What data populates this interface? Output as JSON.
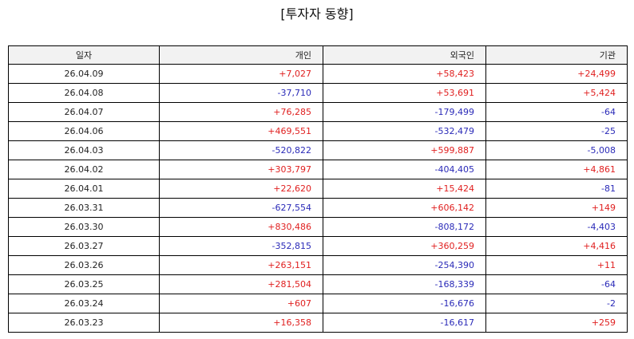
{
  "title": "[투자자 동향]",
  "colors": {
    "positive": "#e02020",
    "negative": "#2a2ab8",
    "header_bg": "#f2f2f2"
  },
  "table": {
    "headers": [
      "일자",
      "개인",
      "외국인",
      "기관"
    ],
    "rows": [
      [
        "26.04.09",
        "+7,027",
        "+58,423",
        "+24,499"
      ],
      [
        "26.04.08",
        "-37,710",
        "+53,691",
        "+5,424"
      ],
      [
        "26.04.07",
        "+76,285",
        "-179,499",
        "-64"
      ],
      [
        "26.04.06",
        "+469,551",
        "-532,479",
        "-25"
      ],
      [
        "26.04.03",
        "-520,822",
        "+599,887",
        "-5,008"
      ],
      [
        "26.04.02",
        "+303,797",
        "-404,405",
        "+4,861"
      ],
      [
        "26.04.01",
        "+22,620",
        "+15,424",
        "-81"
      ],
      [
        "26.03.31",
        "-627,554",
        "+606,142",
        "+149"
      ],
      [
        "26.03.30",
        "+830,486",
        "-808,172",
        "-4,403"
      ],
      [
        "26.03.27",
        "-352,815",
        "+360,259",
        "+4,416"
      ],
      [
        "26.03.26",
        "+263,151",
        "-254,390",
        "+11"
      ],
      [
        "26.03.25",
        "+281,504",
        "-168,339",
        "-64"
      ],
      [
        "26.03.24",
        "+607",
        "-16,676",
        "-2"
      ],
      [
        "26.03.23",
        "+16,358",
        "-16,617",
        "+259"
      ]
    ]
  }
}
